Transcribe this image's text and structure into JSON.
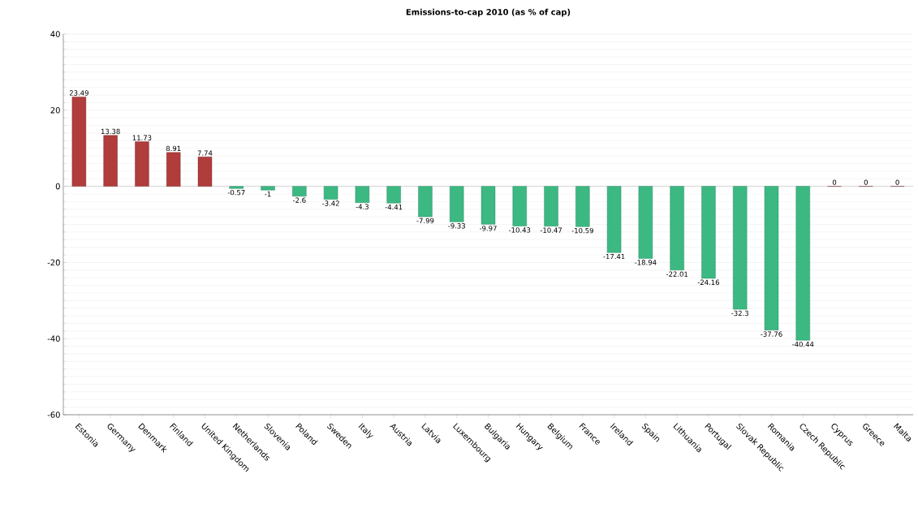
{
  "chart_data": {
    "type": "bar",
    "title": "Emissions-to-cap 2010 (as % of cap)",
    "categories": [
      "Estonia",
      "Germany",
      "Denmark",
      "Finland",
      "United Kingdom",
      "Netherlands",
      "Slovenia",
      "Poland",
      "Sweden",
      "Italy",
      "Austria",
      "Latvia",
      "Luxembourg",
      "Bulgaria",
      "Hungary",
      "Belgium",
      "France",
      "Ireland",
      "Spain",
      "Lithuania",
      "Portugal",
      "Slovak Republic",
      "Romania",
      "Czech Republic",
      "Cyprus",
      "Greece",
      "Malta"
    ],
    "values": [
      23.49,
      13.38,
      11.73,
      8.91,
      7.74,
      -0.57,
      -1,
      -2.6,
      -3.42,
      -4.3,
      -4.41,
      -7.99,
      -9.33,
      -9.97,
      -10.43,
      -10.47,
      -10.59,
      -17.41,
      -18.94,
      -22.01,
      -24.16,
      -32.3,
      -37.76,
      -40.44,
      0,
      0,
      0
    ],
    "colors": [
      "#b03c3c",
      "#b03c3c",
      "#b03c3c",
      "#b03c3c",
      "#b03c3c",
      "#3cb883",
      "#3cb883",
      "#3cb883",
      "#3cb883",
      "#3cb883",
      "#3cb883",
      "#3cb883",
      "#3cb883",
      "#3cb883",
      "#3cb883",
      "#3cb883",
      "#3cb883",
      "#3cb883",
      "#3cb883",
      "#3cb883",
      "#3cb883",
      "#3cb883",
      "#3cb883",
      "#3cb883",
      "#b03c3c",
      "#b03c3c",
      "#b03c3c"
    ],
    "ylim": [
      -60,
      40
    ],
    "yticks": [
      -60,
      -40,
      -20,
      0,
      20,
      40
    ],
    "grid": "y",
    "data_labels": true
  }
}
